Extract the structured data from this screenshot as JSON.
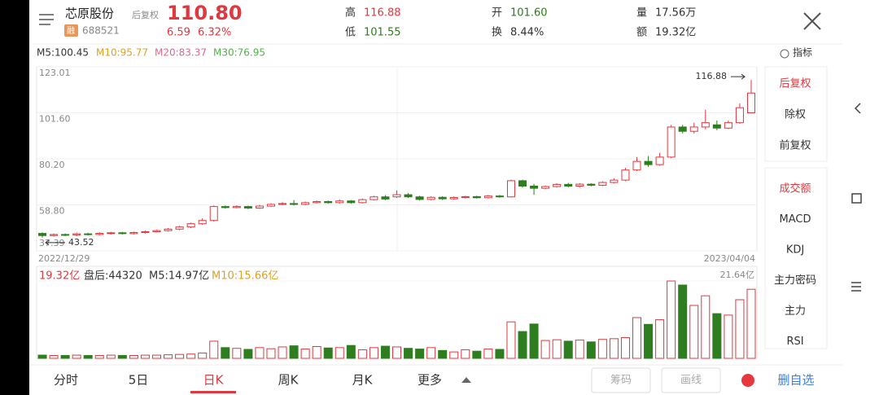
{
  "header": {
    "name": "芯原股份",
    "adjust": "后复权",
    "price": "110.80",
    "badge": "融",
    "code": "688521",
    "change": "6.59",
    "change_pct": "6.32%",
    "high_label": "高",
    "high": "116.88",
    "low_label": "低",
    "low": "101.55",
    "open_label": "开",
    "open": "101.60",
    "turnover_label": "换",
    "turnover": "8.44%",
    "volume_label": "量",
    "volume": "17.56万",
    "amount_label": "额",
    "amount": "19.32亿"
  },
  "ma_legend": [
    "M5:100.45",
    "M10:95.77",
    "M20:83.37",
    "M30:76.95"
  ],
  "indicator_button": "指标",
  "sidebar": {
    "adjust": [
      "后复权",
      "除权",
      "前复权"
    ],
    "indicators": [
      "成交额",
      "MACD",
      "KDJ",
      "主力密码",
      "主力",
      "RSI"
    ]
  },
  "volume_legend": [
    "19.32亿",
    "盘后:44320",
    "M5:14.97亿",
    "M10:15.66亿"
  ],
  "tabs": [
    "分时",
    "5日",
    "日K",
    "周K",
    "月K",
    "更多"
  ],
  "buttons": [
    "筹码",
    "画线"
  ],
  "watchlist": "删自选",
  "chart_data": [
    {
      "type": "candlestick",
      "up_color": "#e0383e",
      "down_color": "#2e7d1e",
      "ylim": [
        37.39,
        123.01
      ],
      "yticks": [
        123.01,
        {
          "value": 101.6,
          "label": "101.60"
        },
        {
          "value": 80.2,
          "label": "80.20"
        },
        {
          "value": 58.8,
          "label": "58.80"
        },
        37.39
      ],
      "start_date": "2022/12/29",
      "end_date": "2023/04/04",
      "max_label": 116.88,
      "min_label": 43.52,
      "open": [
        45.5,
        44.5,
        45,
        44.8,
        45.3,
        45,
        45.5,
        45.8,
        45.4,
        45.9,
        46.3,
        46.8,
        47.5,
        48.5,
        50,
        51.5,
        58,
        57.5,
        58,
        57.3,
        58.2,
        59,
        59.4,
        59,
        59.8,
        60.3,
        59.8,
        60.6,
        59.8,
        61.2,
        62.5,
        62.5,
        63.5,
        62.5,
        61.3,
        62.3,
        61.6,
        62.2,
        62.6,
        62.1,
        62.9,
        62.5,
        70,
        67.5,
        66.5,
        67.3,
        68.3,
        67.5,
        68.4,
        67.9,
        69.2,
        70.3,
        75,
        79,
        77.5,
        81,
        95,
        93,
        95,
        96,
        94.5,
        97,
        101.6
      ],
      "close": [
        44.5,
        45,
        44.8,
        45.3,
        45,
        45.5,
        45.8,
        45.4,
        45.9,
        46.3,
        46.8,
        47.5,
        48.5,
        50,
        51.5,
        58,
        57.5,
        58,
        57.3,
        58.2,
        59,
        59.4,
        59,
        59.8,
        60.3,
        59.8,
        60.6,
        59.8,
        61.2,
        62.5,
        61.5,
        63.5,
        62.5,
        61.3,
        62.3,
        61.6,
        62.2,
        62.6,
        62.1,
        62.9,
        62.5,
        70,
        67.5,
        66.5,
        67.3,
        68.3,
        67.5,
        68.4,
        67.9,
        69.2,
        70.3,
        75,
        79,
        77.5,
        81,
        95,
        93,
        95,
        97,
        94.5,
        97,
        104,
        110.8
      ],
      "high": [
        46,
        45.5,
        45.5,
        45.8,
        45.8,
        46,
        46.2,
        46.2,
        46.3,
        46.8,
        47.2,
        48,
        49,
        50.5,
        52.5,
        58.5,
        58.5,
        58.6,
        58.4,
        58.8,
        59.6,
        60,
        61,
        60.3,
        60.8,
        60.8,
        61.2,
        61,
        61.7,
        63,
        63.3,
        65.5,
        64.3,
        63,
        62.8,
        62.8,
        62.7,
        63,
        63,
        63.4,
        63.4,
        70.5,
        70.5,
        68.5,
        67.8,
        68.8,
        69,
        68.9,
        68.8,
        69.7,
        71.2,
        76,
        81,
        81.5,
        83,
        96,
        96,
        97,
        103,
        98,
        98,
        106,
        116.88
      ],
      "low": [
        43.52,
        44,
        44.2,
        44.3,
        44.5,
        44.6,
        45,
        45,
        45,
        45.5,
        46,
        46.4,
        47,
        48,
        49.5,
        51,
        57,
        57.2,
        56.8,
        56.9,
        57.8,
        58.6,
        58.5,
        58.6,
        59.4,
        59.3,
        59.3,
        59.3,
        59.4,
        60.8,
        61,
        62,
        62,
        60.8,
        60.9,
        61,
        61.2,
        61.8,
        61.7,
        61.7,
        62.1,
        62.2,
        66.8,
        63.5,
        66,
        66.8,
        66.9,
        66.8,
        67.4,
        67.5,
        68.8,
        69.8,
        74.5,
        76.5,
        77,
        80.5,
        92,
        92,
        94,
        93.5,
        94,
        96.5,
        101.55
      ]
    },
    {
      "type": "bar",
      "ylim": [
        0,
        21.64
      ],
      "yticks": [
        {
          "value": 21.64,
          "label": "21.64亿"
        }
      ],
      "values": [
        0.9,
        0.8,
        0.8,
        0.9,
        0.8,
        0.8,
        0.9,
        0.8,
        0.8,
        0.9,
        0.9,
        1.0,
        1.1,
        1.2,
        1.5,
        4.8,
        3.0,
        2.8,
        2.5,
        3.0,
        2.7,
        3.2,
        3.5,
        2.6,
        3.3,
        2.9,
        3.0,
        3.6,
        2.4,
        3.0,
        3.4,
        3.2,
        2.8,
        2.6,
        3.0,
        2.2,
        1.8,
        2.4,
        2.0,
        2.6,
        2.5,
        10.2,
        7.5,
        9.6,
        5.0,
        5.2,
        4.8,
        5.1,
        4.6,
        5.3,
        5.5,
        5.8,
        11.4,
        9.5,
        10.8,
        21.64,
        20.5,
        14.8,
        17.5,
        12.5,
        12.1,
        16.4,
        19.32
      ]
    }
  ]
}
